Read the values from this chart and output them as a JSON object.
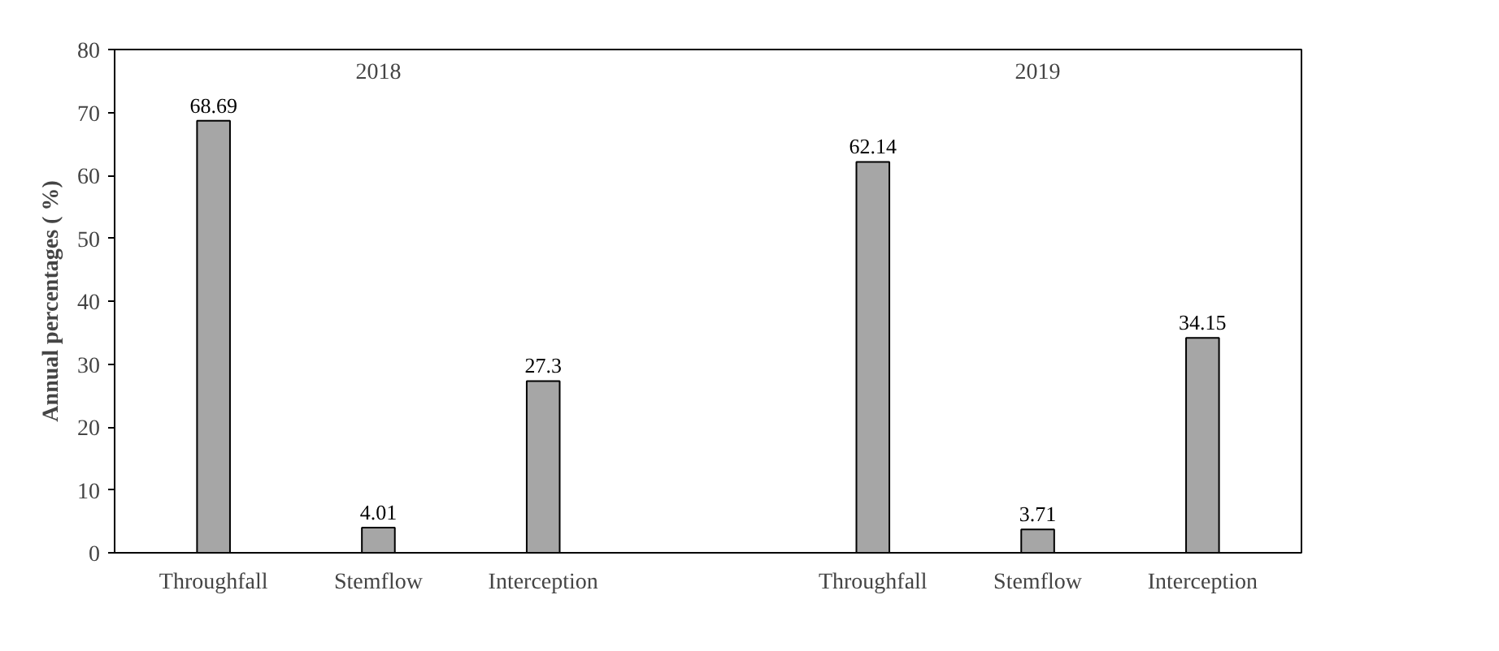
{
  "chart_data": {
    "type": "bar",
    "ylabel": "Annual percentages ( %)",
    "categories": [
      "Throughfall",
      "Stemflow",
      "Interception",
      null,
      "Throughfall",
      "Stemflow",
      "Interception"
    ],
    "values": [
      68.69,
      4.01,
      27.3,
      null,
      62.14,
      3.71,
      34.15
    ],
    "color": "#a6a6a6",
    "ylim": [
      0,
      80
    ],
    "yticks": [
      0,
      10,
      20,
      30,
      40,
      50,
      60,
      70,
      80
    ],
    "grid": false,
    "data_labels": true,
    "annotations": [
      "2018",
      "2019"
    ]
  }
}
